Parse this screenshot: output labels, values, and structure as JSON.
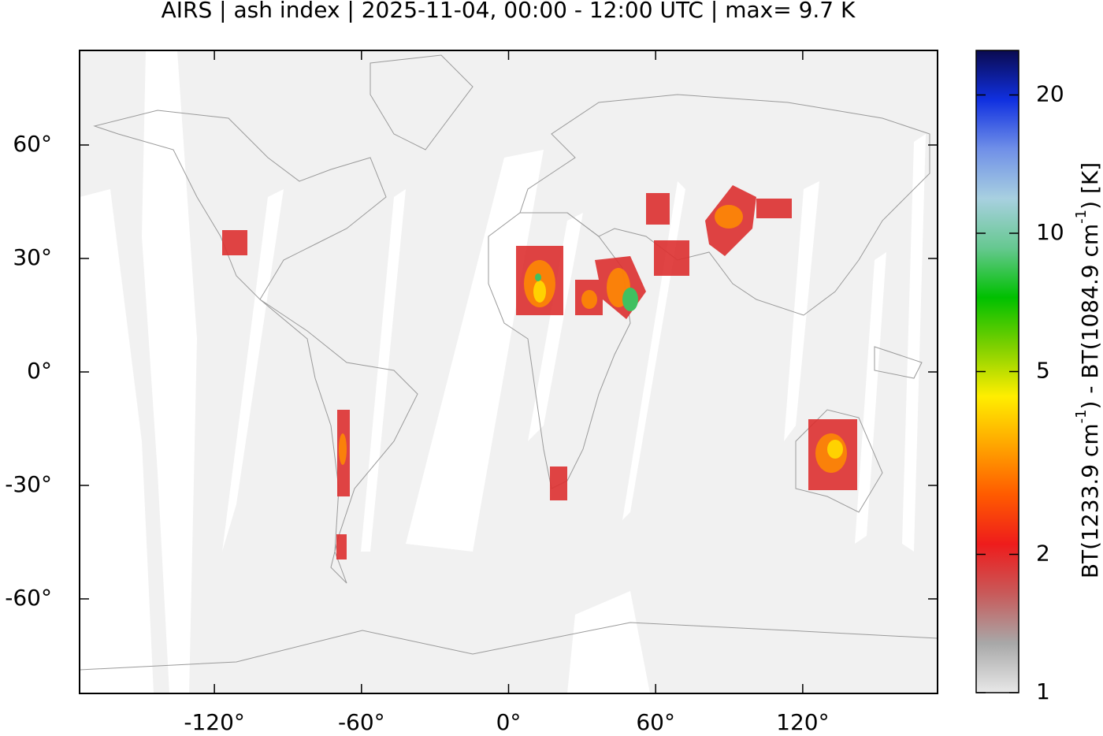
{
  "chart_data": {
    "type": "map",
    "title": "AIRS | ash index | 2025-11-04, 00:00 - 12:00 UTC | max= 9.7 K",
    "xlim": [
      -175,
      175
    ],
    "ylim": [
      -85,
      85
    ],
    "xticks": [
      {
        "value": -120,
        "label": "-120°"
      },
      {
        "value": -60,
        "label": "-60°"
      },
      {
        "value": 0,
        "label": "0°"
      },
      {
        "value": 60,
        "label": "60°"
      },
      {
        "value": 120,
        "label": "120°"
      }
    ],
    "yticks": [
      {
        "value": 60,
        "label": "60°"
      },
      {
        "value": 30,
        "label": "30°"
      },
      {
        "value": 0,
        "label": "0°"
      },
      {
        "value": -30,
        "label": "-30°"
      },
      {
        "value": -60,
        "label": "-60°"
      }
    ],
    "background_color": "#f1f1f1",
    "colorbar": {
      "log_scale": true,
      "lim": [
        1,
        25
      ],
      "ticks": [
        1,
        2,
        5,
        10,
        20
      ],
      "label_parts": [
        "BT(1233.9 cm",
        "-1",
        ") - BT(1084.9 cm",
        "-1",
        ") [K]"
      ],
      "colors": [
        "#e8e8e8",
        "#a8a8a8",
        "#c85a5a",
        "#ee1c1c",
        "#ff5a00",
        "#ffa500",
        "#ffee00",
        "#7fd000",
        "#00c000",
        "#66c890",
        "#a8d0e0",
        "#7090e8",
        "#1030e0",
        "#0a0a50"
      ]
    }
  }
}
